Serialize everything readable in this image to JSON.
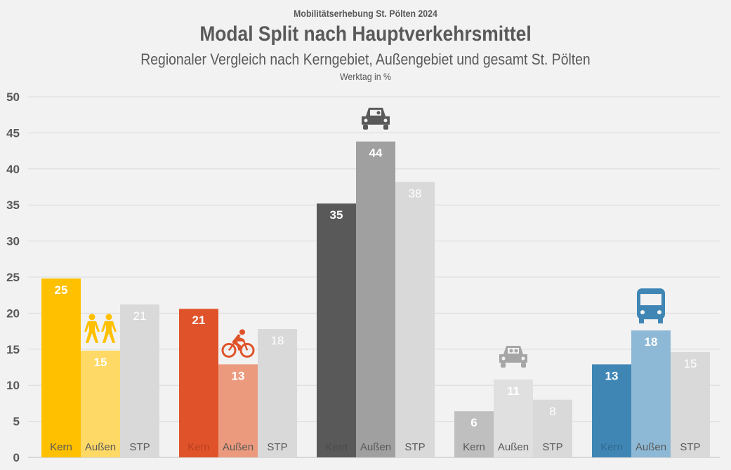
{
  "chart_data": {
    "type": "bar",
    "supertitle": "Mobilitätserhebung St. Pölten 2024",
    "title": "Modal Split nach Hauptverkehrsmittel",
    "subtitle": "Regionaler Vergleich nach Kerngebiet, Außengebiet und gesamt St. Pölten",
    "unit": "Werktag in %",
    "ylim": [
      0,
      50
    ],
    "yticks": [
      0,
      5,
      10,
      15,
      20,
      25,
      30,
      35,
      40,
      45,
      50
    ],
    "grid": true,
    "groups": [
      {
        "icon": "pedestrians-icon",
        "bars": [
          {
            "name": "Kern",
            "value": 24.8,
            "label": "25",
            "color": "#FFC000"
          },
          {
            "name": "Außen",
            "value": 14.8,
            "label": "15",
            "color": "#FFD966"
          },
          {
            "name": "STP",
            "value": 21.2,
            "label": "21",
            "color": "#D9D9D9"
          }
        ]
      },
      {
        "icon": "bicycle-icon",
        "bars": [
          {
            "name": "Kern",
            "value": 20.6,
            "label": "21",
            "color": "#E0532A"
          },
          {
            "name": "Außen",
            "value": 12.9,
            "label": "13",
            "color": "#EC9A7E"
          },
          {
            "name": "STP",
            "value": 17.8,
            "label": "18",
            "color": "#D9D9D9"
          }
        ]
      },
      {
        "icon": "car-driver-icon",
        "bars": [
          {
            "name": "Kern",
            "value": 35.2,
            "label": "35",
            "color": "#595959"
          },
          {
            "name": "Außen",
            "value": 43.8,
            "label": "44",
            "color": "#A0A0A0"
          },
          {
            "name": "STP",
            "value": 38.2,
            "label": "38",
            "color": "#D9D9D9"
          }
        ]
      },
      {
        "icon": "car-passenger-icon",
        "bars": [
          {
            "name": "Kern",
            "value": 6.4,
            "label": "6",
            "color": "#BFBFBF"
          },
          {
            "name": "Außen",
            "value": 10.8,
            "label": "11",
            "color": "#E0E0E0"
          },
          {
            "name": "STP",
            "value": 8.0,
            "label": "8",
            "color": "#D9D9D9"
          }
        ]
      },
      {
        "icon": "bus-icon",
        "bars": [
          {
            "name": "Kern",
            "value": 12.9,
            "label": "13",
            "color": "#3F86B5"
          },
          {
            "name": "Außen",
            "value": 17.6,
            "label": "18",
            "color": "#8EB9D6"
          },
          {
            "name": "STP",
            "value": 14.6,
            "label": "15",
            "color": "#D9D9D9"
          }
        ]
      }
    ]
  }
}
